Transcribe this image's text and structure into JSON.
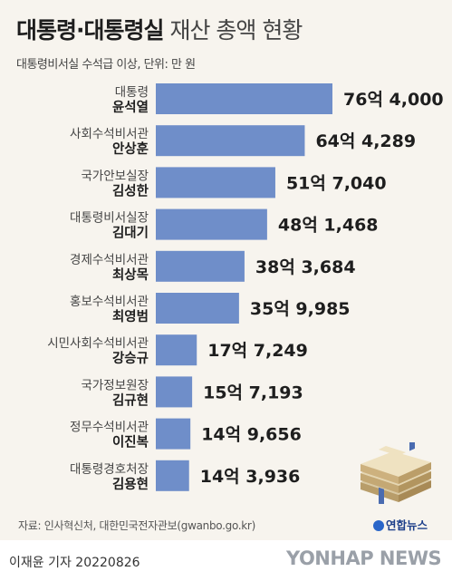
{
  "title": {
    "bold": "대통령·대통령실",
    "light": "재산 총액 현황"
  },
  "subtitle": "대통령비서실 수석급 이상, 단위: 만 원",
  "chart_data": {
    "type": "bar",
    "orientation": "horizontal",
    "unit": "만 원",
    "items": [
      {
        "role": "대통령",
        "name": "윤석열",
        "value": 764000,
        "label": "76억 4,000"
      },
      {
        "role": "사회수석비서관",
        "name": "안상훈",
        "value": 644289,
        "label": "64억 4,289"
      },
      {
        "role": "국가안보실장",
        "name": "김성한",
        "value": 517040,
        "label": "51억 7,040"
      },
      {
        "role": "대통령비서실장",
        "name": "김대기",
        "value": 481468,
        "label": "48억 1,468"
      },
      {
        "role": "경제수석비서관",
        "name": "최상목",
        "value": 383684,
        "label": "38억 3,684"
      },
      {
        "role": "홍보수석비서관",
        "name": "최영범",
        "value": 359985,
        "label": "35억 9,985"
      },
      {
        "role": "시민사회수석비서관",
        "name": "강승규",
        "value": 177249,
        "label": "17억 7,249"
      },
      {
        "role": "국가정보원장",
        "name": "김규현",
        "value": 157193,
        "label": "15억 7,193"
      },
      {
        "role": "정무수석비서관",
        "name": "이진복",
        "value": 149656,
        "label": "14억 9,656"
      },
      {
        "role": "대통령경호처장",
        "name": "김용현",
        "value": 143936,
        "label": "14억 3,936"
      }
    ],
    "bar_color": "#6f8ec9"
  },
  "source": "자료: 인사혁신처, 대한민국전자관보(gwanbo.go.kr)",
  "reporter": "이재윤 기자  20220826",
  "logo_text": "연합뉴스",
  "watermark": "YONHAP NEWS",
  "icons": {
    "logo": "yonhap-logo-icon",
    "decoration": "money-stack-icon"
  }
}
